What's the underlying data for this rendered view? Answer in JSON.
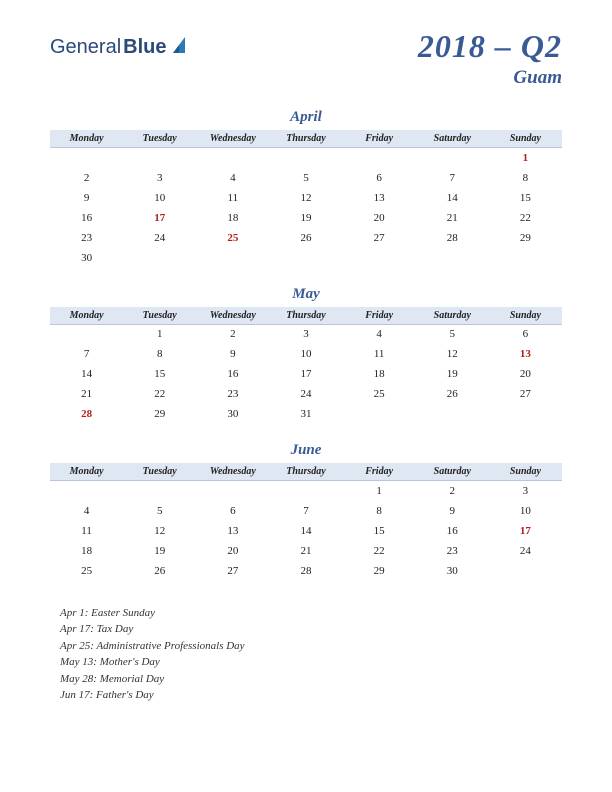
{
  "logo": {
    "part1": "General",
    "part2": "Blue"
  },
  "header": {
    "title": "2018 – Q2",
    "location": "Guam"
  },
  "days": [
    "Monday",
    "Tuesday",
    "Wednesday",
    "Thursday",
    "Friday",
    "Saturday",
    "Sunday"
  ],
  "months": [
    {
      "name": "April",
      "weeks": [
        [
          null,
          null,
          null,
          null,
          null,
          null,
          {
            "d": 1,
            "h": true
          }
        ],
        [
          {
            "d": 2
          },
          {
            "d": 3
          },
          {
            "d": 4
          },
          {
            "d": 5
          },
          {
            "d": 6
          },
          {
            "d": 7
          },
          {
            "d": 8
          }
        ],
        [
          {
            "d": 9
          },
          {
            "d": 10
          },
          {
            "d": 11
          },
          {
            "d": 12
          },
          {
            "d": 13
          },
          {
            "d": 14
          },
          {
            "d": 15
          }
        ],
        [
          {
            "d": 16
          },
          {
            "d": 17,
            "h": true
          },
          {
            "d": 18
          },
          {
            "d": 19
          },
          {
            "d": 20
          },
          {
            "d": 21
          },
          {
            "d": 22
          }
        ],
        [
          {
            "d": 23
          },
          {
            "d": 24
          },
          {
            "d": 25,
            "h": true
          },
          {
            "d": 26
          },
          {
            "d": 27
          },
          {
            "d": 28
          },
          {
            "d": 29
          }
        ],
        [
          {
            "d": 30
          },
          null,
          null,
          null,
          null,
          null,
          null
        ]
      ]
    },
    {
      "name": "May",
      "weeks": [
        [
          null,
          {
            "d": 1
          },
          {
            "d": 2
          },
          {
            "d": 3
          },
          {
            "d": 4
          },
          {
            "d": 5
          },
          {
            "d": 6
          }
        ],
        [
          {
            "d": 7
          },
          {
            "d": 8
          },
          {
            "d": 9
          },
          {
            "d": 10
          },
          {
            "d": 11
          },
          {
            "d": 12
          },
          {
            "d": 13,
            "h": true
          }
        ],
        [
          {
            "d": 14
          },
          {
            "d": 15
          },
          {
            "d": 16
          },
          {
            "d": 17
          },
          {
            "d": 18
          },
          {
            "d": 19
          },
          {
            "d": 20
          }
        ],
        [
          {
            "d": 21
          },
          {
            "d": 22
          },
          {
            "d": 23
          },
          {
            "d": 24
          },
          {
            "d": 25
          },
          {
            "d": 26
          },
          {
            "d": 27
          }
        ],
        [
          {
            "d": 28,
            "h": true
          },
          {
            "d": 29
          },
          {
            "d": 30
          },
          {
            "d": 31
          },
          null,
          null,
          null
        ]
      ]
    },
    {
      "name": "June",
      "weeks": [
        [
          null,
          null,
          null,
          null,
          {
            "d": 1
          },
          {
            "d": 2
          },
          {
            "d": 3
          }
        ],
        [
          {
            "d": 4
          },
          {
            "d": 5
          },
          {
            "d": 6
          },
          {
            "d": 7
          },
          {
            "d": 8
          },
          {
            "d": 9
          },
          {
            "d": 10
          }
        ],
        [
          {
            "d": 11
          },
          {
            "d": 12
          },
          {
            "d": 13
          },
          {
            "d": 14
          },
          {
            "d": 15
          },
          {
            "d": 16
          },
          {
            "d": 17,
            "h": true
          }
        ],
        [
          {
            "d": 18
          },
          {
            "d": 19
          },
          {
            "d": 20
          },
          {
            "d": 21
          },
          {
            "d": 22
          },
          {
            "d": 23
          },
          {
            "d": 24
          }
        ],
        [
          {
            "d": 25
          },
          {
            "d": 26
          },
          {
            "d": 27
          },
          {
            "d": 28
          },
          {
            "d": 29
          },
          {
            "d": 30
          },
          null
        ]
      ]
    }
  ],
  "holidays": [
    "Apr 1: Easter Sunday",
    "Apr 17: Tax Day",
    "Apr 25: Administrative Professionals Day",
    "May 13: Mother's Day",
    "May 28: Memorial Day",
    "Jun 17: Father's Day"
  ],
  "colors": {
    "header_bg": "#dfe7f2",
    "accent": "#3a5a96",
    "holiday": "#b02020"
  }
}
